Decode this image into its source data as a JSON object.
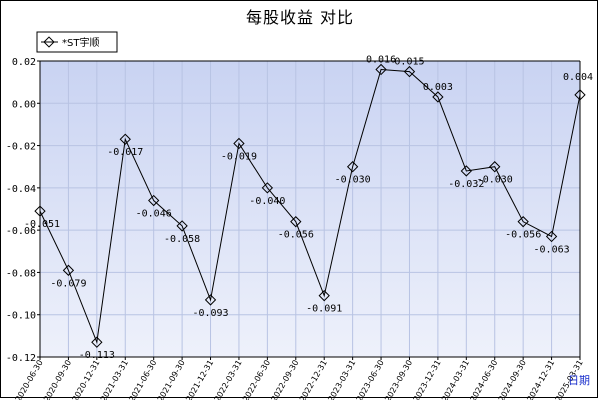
{
  "chart_data": {
    "type": "line",
    "title": "每股收益 对比",
    "legend": {
      "position": "top-left",
      "entries": [
        "*ST宇顺"
      ]
    },
    "grid": true,
    "ylim": [
      -0.12,
      0.02
    ],
    "yticks": [
      "0.02",
      "0.00",
      "-0.02",
      "-0.04",
      "-0.06",
      "-0.08",
      "-0.10",
      "-0.12"
    ],
    "categories": [
      "2020-06-30",
      "2020-09-30",
      "2020-12-31",
      "2021-03-31",
      "2021-06-30",
      "2021-09-30",
      "2021-12-31",
      "2022-03-31",
      "2022-06-30",
      "2022-09-30",
      "2022-12-31",
      "2023-03-31",
      "2023-06-30",
      "2023-09-30",
      "2023-12-31",
      "2024-03-31",
      "2024-06-30",
      "2024-09-30",
      "2024-12-31",
      "2025-03-31"
    ],
    "series": [
      {
        "name": "*ST宇顺",
        "color": "#000000",
        "values": [
          -0.051,
          -0.079,
          -0.113,
          -0.017,
          -0.046,
          -0.058,
          -0.093,
          -0.019,
          -0.04,
          -0.056,
          -0.091,
          -0.03,
          0.016,
          0.015,
          0.003,
          -0.032,
          -0.03,
          -0.056,
          -0.063,
          0.004
        ],
        "labels": [
          "-0.051",
          "-0.079",
          "-0.113",
          "-0.017",
          "-0.046",
          "-0.058",
          "-0.093",
          "-0.019",
          "-0.040",
          "-0.056",
          "-0.091",
          "-0.030",
          "0.016",
          "0.015",
          "0.003",
          "-0.032",
          "-0.030",
          "-0.056",
          "-0.063",
          "0.004"
        ]
      }
    ],
    "x_extra_label": "日期",
    "colors": {
      "plot_bg": "#dde4f7",
      "grid": "#b8c3e3",
      "line": "#000000"
    }
  }
}
